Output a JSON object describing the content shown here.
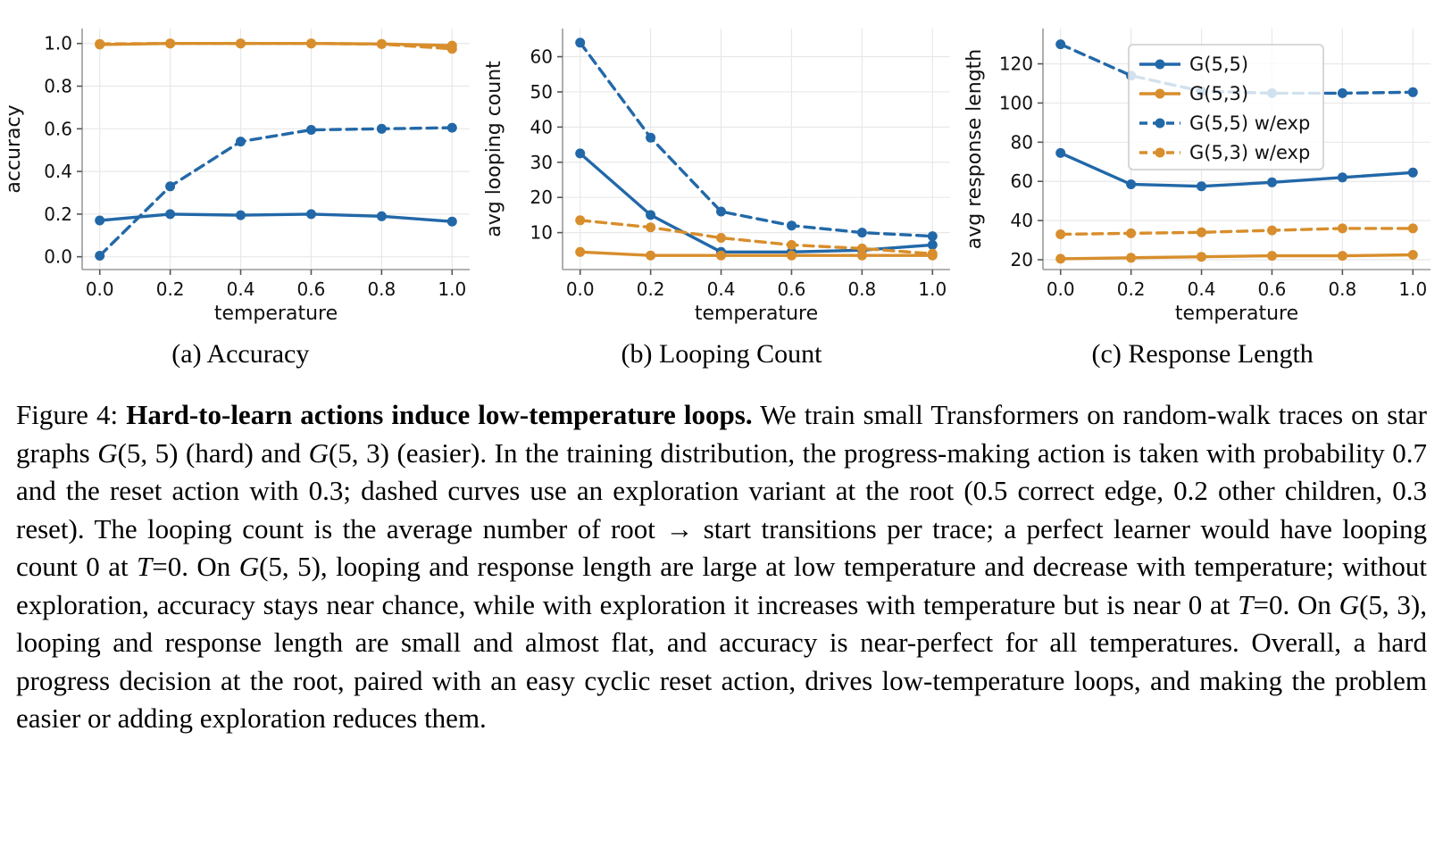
{
  "colors": {
    "blue": "#2268a8",
    "orange": "#d88e2c",
    "grid": "#e8e8e8",
    "spine": "#9a9a9a",
    "tick": "#555555",
    "text": "#111111",
    "legend_border": "#cccccc"
  },
  "figure": {
    "subcaptions": [
      "(a) Accuracy",
      "(b) Looping Count",
      "(c) Response Length"
    ],
    "caption_segments": [
      {
        "style": "normal",
        "text": "Figure 4: "
      },
      {
        "style": "bold",
        "text": "Hard-to-learn actions induce low-temperature loops."
      },
      {
        "style": "normal",
        "text": " We train small Transformers on random-walk traces on star graphs "
      },
      {
        "style": "italic",
        "text": "G"
      },
      {
        "style": "normal",
        "text": "(5, 5) (hard) and "
      },
      {
        "style": "italic",
        "text": "G"
      },
      {
        "style": "normal",
        "text": "(5, 3) (easier). In the training distribution, the progress-making action is taken with probability 0.7 and the reset action with 0.3; dashed curves use an exploration variant at the root (0.5 correct edge, 0.2 other children, 0.3 reset). The looping count is the average number of root → start transitions per trace; a perfect learner would have looping count 0 at "
      },
      {
        "style": "italic",
        "text": "T"
      },
      {
        "style": "normal",
        "text": "=0. On "
      },
      {
        "style": "italic",
        "text": "G"
      },
      {
        "style": "normal",
        "text": "(5, 5), looping and response length are large at low temperature and decrease with temperature; without exploration, accuracy stays near chance, while with exploration it increases with temperature but is near 0 at "
      },
      {
        "style": "italic",
        "text": "T"
      },
      {
        "style": "normal",
        "text": "=0. On "
      },
      {
        "style": "italic",
        "text": "G"
      },
      {
        "style": "normal",
        "text": "(5, 3), looping and response length are small and almost flat, and accuracy is near-perfect for all temperatures. Overall, a hard progress decision at the root, paired with an easy cyclic reset action, drives low-temperature loops, and making the problem easier or adding exploration reduces them."
      }
    ]
  },
  "chart_data": [
    {
      "type": "line",
      "name": "accuracy",
      "title": "(a) Accuracy",
      "xlabel": "temperature",
      "ylabel": "accuracy",
      "x": [
        0.0,
        0.2,
        0.4,
        0.6,
        0.8,
        1.0
      ],
      "xlim": [
        -0.05,
        1.05
      ],
      "ylim": [
        -0.06,
        1.07
      ],
      "xticks": [
        0.0,
        0.2,
        0.4,
        0.6,
        0.8,
        1.0
      ],
      "xtick_labels": [
        "0.0",
        "0.2",
        "0.4",
        "0.6",
        "0.8",
        "1.0"
      ],
      "yticks": [
        0.0,
        0.2,
        0.4,
        0.6,
        0.8,
        1.0
      ],
      "ytick_labels": [
        "0.0",
        "0.2",
        "0.4",
        "0.6",
        "0.8",
        "1.0"
      ],
      "grid": true,
      "legend": {
        "show": false,
        "position": null
      },
      "series": [
        {
          "name": "G(5,5)",
          "color": "blue",
          "dash": false,
          "values": [
            0.17,
            0.2,
            0.195,
            0.2,
            0.19,
            0.165
          ]
        },
        {
          "name": "G(5,3)",
          "color": "orange",
          "dash": false,
          "values": [
            0.995,
            1.0,
            1.0,
            1.0,
            0.998,
            0.99
          ]
        },
        {
          "name": "G(5,5) w/exp",
          "color": "blue",
          "dash": true,
          "values": [
            0.005,
            0.33,
            0.54,
            0.595,
            0.6,
            0.605
          ]
        },
        {
          "name": "G(5,3) w/exp",
          "color": "orange",
          "dash": true,
          "values": [
            0.998,
            1.0,
            1.0,
            1.0,
            0.997,
            0.975
          ]
        }
      ]
    },
    {
      "type": "line",
      "name": "looping-count",
      "title": "(b) Looping Count",
      "xlabel": "temperature",
      "ylabel": "avg looping count",
      "x": [
        0.0,
        0.2,
        0.4,
        0.6,
        0.8,
        1.0
      ],
      "xlim": [
        -0.05,
        1.05
      ],
      "ylim": [
        -0.5,
        68
      ],
      "xticks": [
        0.0,
        0.2,
        0.4,
        0.6,
        0.8,
        1.0
      ],
      "xtick_labels": [
        "0.0",
        "0.2",
        "0.4",
        "0.6",
        "0.8",
        "1.0"
      ],
      "yticks": [
        10,
        20,
        30,
        40,
        50,
        60
      ],
      "ytick_labels": [
        "10",
        "20",
        "30",
        "40",
        "50",
        "60"
      ],
      "grid": true,
      "legend": {
        "show": false,
        "position": null
      },
      "series": [
        {
          "name": "G(5,5)",
          "color": "blue",
          "dash": false,
          "values": [
            32.5,
            15,
            4.5,
            4.5,
            5,
            6.5
          ]
        },
        {
          "name": "G(5,3)",
          "color": "orange",
          "dash": false,
          "values": [
            4.5,
            3.5,
            3.5,
            3.5,
            3.5,
            3.5
          ]
        },
        {
          "name": "G(5,5) w/exp",
          "color": "blue",
          "dash": true,
          "values": [
            64,
            37,
            16,
            12,
            10,
            9
          ]
        },
        {
          "name": "G(5,3) w/exp",
          "color": "orange",
          "dash": true,
          "values": [
            13.5,
            11.5,
            8.5,
            6.5,
            5.5,
            4
          ]
        }
      ]
    },
    {
      "type": "line",
      "name": "response-length",
      "title": "(c) Response Length",
      "xlabel": "temperature",
      "ylabel": "avg response length",
      "x": [
        0.0,
        0.2,
        0.4,
        0.6,
        0.8,
        1.0
      ],
      "xlim": [
        -0.05,
        1.05
      ],
      "ylim": [
        15,
        138
      ],
      "xticks": [
        0.0,
        0.2,
        0.4,
        0.6,
        0.8,
        1.0
      ],
      "xtick_labels": [
        "0.0",
        "0.2",
        "0.4",
        "0.6",
        "0.8",
        "1.0"
      ],
      "yticks": [
        20,
        40,
        60,
        80,
        100,
        120
      ],
      "ytick_labels": [
        "20",
        "40",
        "60",
        "80",
        "100",
        "120"
      ],
      "grid": true,
      "legend": {
        "show": true,
        "position": "upper right"
      },
      "series": [
        {
          "name": "G(5,5)",
          "color": "blue",
          "dash": false,
          "values": [
            74.5,
            58.5,
            57.5,
            59.5,
            62,
            64.5
          ]
        },
        {
          "name": "G(5,3)",
          "color": "orange",
          "dash": false,
          "values": [
            20.5,
            21,
            21.5,
            22,
            22,
            22.5
          ]
        },
        {
          "name": "G(5,5) w/exp",
          "color": "blue",
          "dash": true,
          "values": [
            130,
            114,
            106,
            105,
            105,
            105.5
          ]
        },
        {
          "name": "G(5,3) w/exp",
          "color": "orange",
          "dash": true,
          "values": [
            33,
            33.5,
            34,
            35,
            36,
            36
          ]
        }
      ]
    }
  ]
}
